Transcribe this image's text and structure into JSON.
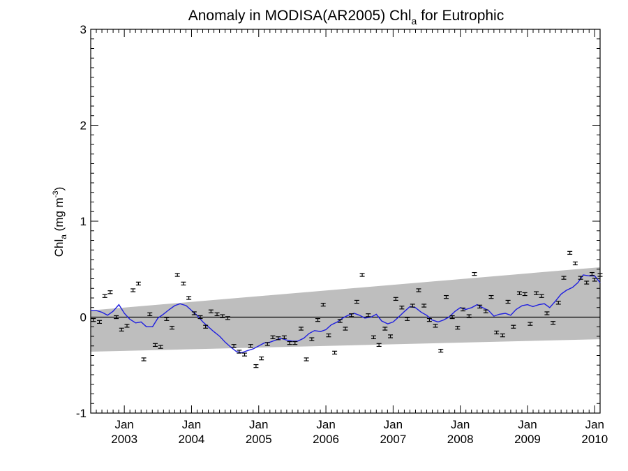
{
  "chart_data": {
    "type": "line",
    "title": {
      "main": "Anomaly in MODISA(AR2005) Chl",
      "sub": "a",
      "tail": " for Eutrophic"
    },
    "ylabel": {
      "main": "Chl",
      "sub": "a",
      "unit_open": " (mg m",
      "unit_sup": "-3",
      "unit_close": ")"
    },
    "xlabel": "",
    "ylim": [
      -1,
      3
    ],
    "xlim": [
      2002.5,
      2010.08
    ],
    "yticks": [
      -1,
      0,
      1,
      2,
      3
    ],
    "ytick_labels": [
      "-1",
      "0",
      "1",
      "2",
      "3"
    ],
    "xticks": [
      {
        "x": 2003.0,
        "month": "Jan",
        "year": "2003"
      },
      {
        "x": 2004.0,
        "month": "Jan",
        "year": "2004"
      },
      {
        "x": 2005.0,
        "month": "Jan",
        "year": "2005"
      },
      {
        "x": 2006.0,
        "month": "Jan",
        "year": "2006"
      },
      {
        "x": 2007.0,
        "month": "Jan",
        "year": "2007"
      },
      {
        "x": 2008.0,
        "month": "Jan",
        "year": "2008"
      },
      {
        "x": 2009.0,
        "month": "Jan",
        "year": "2009"
      },
      {
        "x": 2010.0,
        "month": "Jan",
        "year": "2010"
      }
    ],
    "band": {
      "x": [
        2002.5,
        2010.08
      ],
      "lower": [
        -0.36,
        -0.23
      ],
      "upper": [
        0.07,
        0.52
      ],
      "color": "#bebebe"
    },
    "zero_line_color": "#000000",
    "series": [
      {
        "type": "errorbar",
        "color": "#000000",
        "err": 0.015,
        "x": [
          2002.54,
          2002.63,
          2002.71,
          2002.79,
          2002.88,
          2002.96,
          2003.04,
          2003.13,
          2003.21,
          2003.29,
          2003.38,
          2003.46,
          2003.54,
          2003.63,
          2003.71,
          2003.79,
          2003.88,
          2003.96,
          2004.04,
          2004.13,
          2004.21,
          2004.29,
          2004.38,
          2004.46,
          2004.54,
          2004.63,
          2004.71,
          2004.79,
          2004.88,
          2004.96,
          2005.04,
          2005.13,
          2005.21,
          2005.29,
          2005.38,
          2005.46,
          2005.54,
          2005.63,
          2005.71,
          2005.79,
          2005.88,
          2005.96,
          2006.04,
          2006.13,
          2006.21,
          2006.29,
          2006.38,
          2006.46,
          2006.54,
          2006.63,
          2006.71,
          2006.79,
          2006.88,
          2006.96,
          2007.04,
          2007.13,
          2007.21,
          2007.29,
          2007.38,
          2007.46,
          2007.54,
          2007.63,
          2007.71,
          2007.79,
          2007.88,
          2007.96,
          2008.04,
          2008.13,
          2008.21,
          2008.29,
          2008.38,
          2008.46,
          2008.54,
          2008.63,
          2008.71,
          2008.79,
          2008.88,
          2008.96,
          2009.04,
          2009.13,
          2009.21,
          2009.29,
          2009.38,
          2009.46,
          2009.54,
          2009.63,
          2009.71,
          2009.79,
          2009.88,
          2009.96,
          2010.0,
          2010.08
        ],
        "y": [
          -0.03,
          -0.05,
          0.22,
          0.26,
          0.0,
          -0.13,
          -0.09,
          0.28,
          0.35,
          -0.44,
          0.03,
          -0.29,
          -0.31,
          -0.02,
          -0.11,
          0.44,
          0.35,
          0.2,
          0.04,
          0.0,
          -0.1,
          0.06,
          0.03,
          0.01,
          -0.01,
          -0.3,
          -0.36,
          -0.39,
          -0.3,
          -0.51,
          -0.43,
          -0.28,
          -0.21,
          -0.22,
          -0.21,
          -0.27,
          -0.27,
          -0.12,
          -0.44,
          -0.23,
          -0.03,
          0.13,
          -0.19,
          -0.37,
          -0.04,
          -0.12,
          0.02,
          0.16,
          0.44,
          0.02,
          -0.21,
          -0.29,
          -0.12,
          -0.2,
          0.19,
          0.1,
          -0.02,
          0.12,
          0.28,
          0.12,
          -0.03,
          -0.09,
          -0.35,
          0.21,
          0.0,
          -0.11,
          0.08,
          0.01,
          0.45,
          0.11,
          0.06,
          0.21,
          -0.16,
          -0.19,
          0.16,
          -0.1,
          0.25,
          0.24,
          -0.07,
          0.25,
          0.22,
          0.04,
          -0.06,
          0.15,
          0.41,
          0.67,
          0.56,
          0.41,
          0.36,
          0.45,
          0.39,
          0.44
        ]
      },
      {
        "type": "line",
        "color": "#1f1fe0",
        "x": [
          2002.5,
          2002.58,
          2002.67,
          2002.75,
          2002.83,
          2002.92,
          2003.0,
          2003.08,
          2003.17,
          2003.25,
          2003.33,
          2003.42,
          2003.5,
          2003.58,
          2003.67,
          2003.75,
          2003.83,
          2003.92,
          2004.0,
          2004.08,
          2004.17,
          2004.25,
          2004.33,
          2004.42,
          2004.5,
          2004.58,
          2004.67,
          2004.75,
          2004.83,
          2004.92,
          2005.0,
          2005.08,
          2005.17,
          2005.25,
          2005.33,
          2005.42,
          2005.5,
          2005.58,
          2005.67,
          2005.75,
          2005.83,
          2005.92,
          2006.0,
          2006.08,
          2006.17,
          2006.25,
          2006.33,
          2006.42,
          2006.5,
          2006.58,
          2006.67,
          2006.75,
          2006.83,
          2006.92,
          2007.0,
          2007.08,
          2007.17,
          2007.25,
          2007.33,
          2007.42,
          2007.5,
          2007.58,
          2007.67,
          2007.75,
          2007.83,
          2007.92,
          2008.0,
          2008.08,
          2008.17,
          2008.25,
          2008.33,
          2008.42,
          2008.5,
          2008.58,
          2008.67,
          2008.75,
          2008.83,
          2008.92,
          2009.0,
          2009.08,
          2009.17,
          2009.25,
          2009.33,
          2009.42,
          2009.5,
          2009.58,
          2009.67,
          2009.75,
          2009.83,
          2009.92,
          2010.0,
          2010.08
        ],
        "y": [
          0.07,
          0.07,
          0.05,
          0.02,
          0.06,
          0.13,
          0.04,
          -0.02,
          -0.06,
          -0.05,
          -0.1,
          -0.1,
          -0.01,
          0.03,
          0.08,
          0.12,
          0.14,
          0.12,
          0.07,
          0.02,
          -0.05,
          -0.1,
          -0.15,
          -0.2,
          -0.26,
          -0.31,
          -0.36,
          -0.37,
          -0.35,
          -0.33,
          -0.3,
          -0.27,
          -0.26,
          -0.24,
          -0.22,
          -0.24,
          -0.25,
          -0.25,
          -0.22,
          -0.17,
          -0.14,
          -0.15,
          -0.13,
          -0.08,
          -0.05,
          -0.01,
          0.02,
          0.04,
          0.02,
          -0.01,
          0.0,
          0.03,
          -0.04,
          -0.07,
          -0.05,
          0.0,
          0.06,
          0.11,
          0.1,
          0.05,
          0.02,
          -0.03,
          -0.05,
          -0.03,
          0.0,
          0.06,
          0.1,
          0.08,
          0.1,
          0.13,
          0.1,
          0.07,
          0.01,
          0.03,
          0.04,
          0.02,
          0.08,
          0.12,
          0.13,
          0.11,
          0.13,
          0.14,
          0.1,
          0.17,
          0.24,
          0.28,
          0.31,
          0.36,
          0.44,
          0.43,
          0.43,
          0.36
        ]
      }
    ]
  }
}
